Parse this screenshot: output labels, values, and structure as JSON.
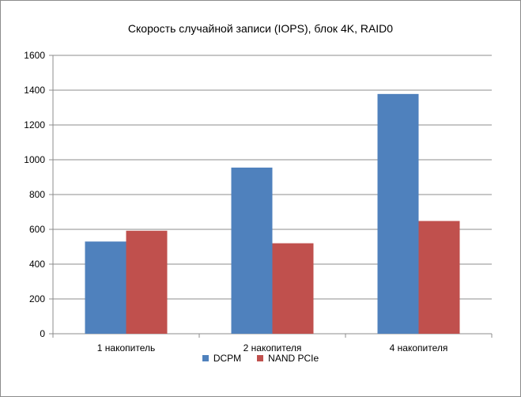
{
  "chart_data": {
    "type": "bar",
    "title": "Скорость случайной записи (IOPS), блок 4K, RAID0",
    "xlabel": "",
    "ylabel": "",
    "categories": [
      "1 накопитель",
      "2 накопителя",
      "4 накопителя"
    ],
    "series": [
      {
        "name": "DCPM",
        "color": "#4f81bd",
        "values": [
          530,
          955,
          1378
        ]
      },
      {
        "name": "NAND PCIe",
        "color": "#c0504d",
        "values": [
          592,
          520,
          648
        ]
      }
    ],
    "ylim": [
      0,
      1600
    ],
    "yticks": [
      0,
      200,
      400,
      600,
      800,
      1000,
      1200,
      1400,
      1600
    ],
    "grid": true,
    "legend_position": "bottom"
  }
}
